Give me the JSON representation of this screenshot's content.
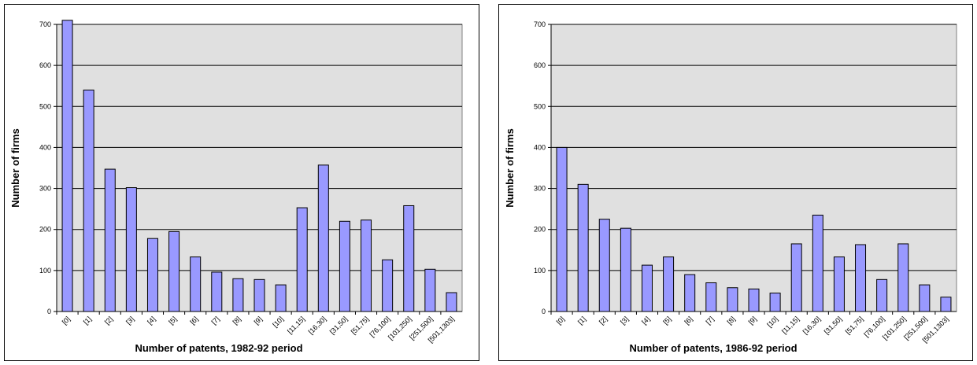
{
  "chart_data": [
    {
      "type": "bar",
      "title": "",
      "xlabel": "Number of patents, 1982-92 period",
      "ylabel": "Number of firms",
      "ylim": [
        0,
        700
      ],
      "yticks": [
        "0",
        "100",
        "200",
        "300",
        "400",
        "500",
        "600",
        "700"
      ],
      "grid": true,
      "categories": [
        "[0]",
        "[1]",
        "[2]",
        "[3]",
        "[4]",
        "[5]",
        "[6]",
        "[7]",
        "[8]",
        "[9]",
        "[10]",
        "[11,15]",
        "[16,30]",
        "[31,50]",
        "[51,75]",
        "[76,100]",
        "[101,250]",
        "[251,500]",
        "[501,1303]"
      ],
      "values": [
        710,
        540,
        347,
        302,
        178,
        195,
        133,
        96,
        80,
        78,
        65,
        253,
        357,
        220,
        223,
        126,
        258,
        103,
        46
      ],
      "bar_color": "#9999ff",
      "plot_bg": "#e0e0e0"
    },
    {
      "type": "bar",
      "title": "",
      "xlabel": "Number of patents, 1986-92 period",
      "ylabel": "Number of firms",
      "ylim": [
        0,
        700
      ],
      "yticks": [
        "0",
        "100",
        "200",
        "300",
        "400",
        "500",
        "600",
        "700"
      ],
      "grid": true,
      "categories": [
        "[0]",
        "[1]",
        "[2]",
        "[3]",
        "[4]",
        "[5]",
        "[6]",
        "[7]",
        "[8]",
        "[9]",
        "[10]",
        "[11,15]",
        "[16,30]",
        "[31,50]",
        "[51,75]",
        "[76,100]",
        "[101,250]",
        "[251,500]",
        "[501,1303]"
      ],
      "values": [
        400,
        310,
        225,
        203,
        113,
        133,
        90,
        70,
        58,
        55,
        45,
        165,
        235,
        133,
        163,
        78,
        165,
        65,
        35
      ],
      "bar_color": "#9999ff",
      "plot_bg": "#e0e0e0"
    }
  ]
}
